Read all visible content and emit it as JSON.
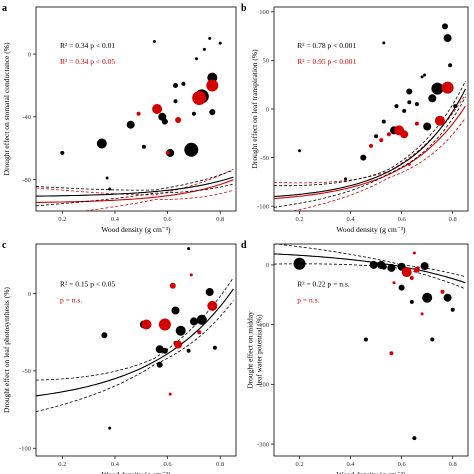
{
  "figure": {
    "colors": {
      "black": "#000000",
      "red": "#d40000",
      "frame": "#000000"
    }
  },
  "chart_data": [
    {
      "panel": "a",
      "type": "scatter",
      "xlabel": "Wood density (g cm⁻³)",
      "ylabel": "Drought effect on stomatal conductance (%)",
      "xlim": [
        0.1,
        0.86
      ],
      "ylim": [
        -100,
        30
      ],
      "xticks": [
        0.2,
        0.4,
        0.6,
        0.8
      ],
      "xtick_labels": [
        "0.2",
        "0.4",
        "0.6",
        "0.8"
      ],
      "yticks": [
        -80,
        -40,
        0
      ],
      "ytick_labels": [
        "-80",
        "-40",
        "0"
      ],
      "annotations": [
        {
          "text": "R² = 0.34 p <  0.01",
          "color": "black"
        },
        {
          "text": "R² = 0.34 p <  0.05",
          "color": "red"
        }
      ],
      "black_fit": {
        "a": -91,
        "b": 0.3,
        "k": 4.4,
        "ci": [
          0.28,
          0.08,
          0.55
        ]
      },
      "red_fit": {
        "a": -95,
        "b": 0.3,
        "k": 4.6,
        "ci": [
          0.42,
          0.08,
          0.55
        ]
      },
      "points": [
        {
          "x": 0.2,
          "y": -63,
          "s": 2,
          "g": "black"
        },
        {
          "x": 0.35,
          "y": -57,
          "s": 5,
          "g": "black"
        },
        {
          "x": 0.37,
          "y": -79,
          "s": 1.5,
          "g": "black"
        },
        {
          "x": 0.38,
          "y": -86,
          "s": 1.5,
          "g": "black"
        },
        {
          "x": 0.46,
          "y": -45,
          "s": 4,
          "g": "black"
        },
        {
          "x": 0.51,
          "y": -59,
          "s": 2,
          "g": "black"
        },
        {
          "x": 0.58,
          "y": -40,
          "s": 4,
          "g": "black"
        },
        {
          "x": 0.59,
          "y": -43,
          "s": 3,
          "g": "black"
        },
        {
          "x": 0.61,
          "y": -63,
          "s": 4,
          "g": "black"
        },
        {
          "x": 0.63,
          "y": -20,
          "s": 2.5,
          "g": "black"
        },
        {
          "x": 0.63,
          "y": -30,
          "s": 2,
          "g": "black"
        },
        {
          "x": 0.66,
          "y": -19,
          "s": 2,
          "g": "black"
        },
        {
          "x": 0.69,
          "y": -61,
          "s": 7,
          "g": "black"
        },
        {
          "x": 0.7,
          "y": -38,
          "s": 2,
          "g": "black"
        },
        {
          "x": 0.71,
          "y": -3,
          "s": 1.5,
          "g": "black"
        },
        {
          "x": 0.73,
          "y": -27,
          "s": 7,
          "g": "black"
        },
        {
          "x": 0.77,
          "y": -15,
          "s": 5,
          "g": "black"
        },
        {
          "x": 0.77,
          "y": -37,
          "s": 3,
          "g": "black"
        },
        {
          "x": 0.55,
          "y": 8,
          "s": 1.5,
          "g": "black"
        },
        {
          "x": 0.74,
          "y": 3,
          "s": 1.5,
          "g": "black"
        },
        {
          "x": 0.76,
          "y": 10,
          "s": 1.5,
          "g": "black"
        },
        {
          "x": 0.8,
          "y": 7,
          "s": 1.5,
          "g": "black"
        },
        {
          "x": 0.49,
          "y": -38,
          "s": 2,
          "g": "red"
        },
        {
          "x": 0.56,
          "y": -35,
          "s": 5,
          "g": "red"
        },
        {
          "x": 0.6,
          "y": -63,
          "s": 2,
          "g": "red"
        },
        {
          "x": 0.64,
          "y": -42,
          "s": 3,
          "g": "red"
        },
        {
          "x": 0.72,
          "y": -28,
          "s": 7,
          "g": "red"
        },
        {
          "x": 0.77,
          "y": -20,
          "s": 6,
          "g": "red"
        }
      ]
    },
    {
      "panel": "b",
      "type": "scatter",
      "xlabel": "Wood density (g cm⁻³)",
      "ylabel": "Drought effect on leaf transpiration (%)",
      "xlim": [
        0.1,
        0.86
      ],
      "ylim": [
        -105,
        105
      ],
      "xticks": [
        0.2,
        0.4,
        0.6,
        0.8
      ],
      "xtick_labels": [
        "0.2",
        "0.4",
        "0.6",
        "0.8"
      ],
      "yticks": [
        -100,
        -50,
        0,
        50,
        100
      ],
      "ytick_labels": [
        "-100",
        "-50",
        "0",
        "50",
        "100"
      ],
      "annotations": [
        {
          "text": "R² = 0.78 p <  0.001",
          "color": "black"
        },
        {
          "text": "R² = 0.95 p <  0.001",
          "color": "red"
        }
      ],
      "black_fit": {
        "a": -94,
        "b": 2.5,
        "k": 4.5,
        "ci": [
          0.3,
          0.1,
          0.55
        ]
      },
      "red_fit": {
        "a": -97,
        "b": 3.2,
        "k": 4.05,
        "ci": [
          0.45,
          0.1,
          0.55
        ]
      },
      "points": [
        {
          "x": 0.2,
          "y": -43,
          "s": 1.5,
          "g": "black"
        },
        {
          "x": 0.38,
          "y": -72,
          "s": 1.5,
          "g": "black"
        },
        {
          "x": 0.45,
          "y": -50,
          "s": 3,
          "g": "black"
        },
        {
          "x": 0.5,
          "y": -28,
          "s": 2,
          "g": "black"
        },
        {
          "x": 0.53,
          "y": -13,
          "s": 2,
          "g": "black"
        },
        {
          "x": 0.53,
          "y": 68,
          "s": 1.5,
          "g": "black"
        },
        {
          "x": 0.57,
          "y": -22,
          "s": 4,
          "g": "black"
        },
        {
          "x": 0.58,
          "y": 3,
          "s": 2,
          "g": "black"
        },
        {
          "x": 0.61,
          "y": -2,
          "s": 2,
          "g": "black"
        },
        {
          "x": 0.63,
          "y": 18,
          "s": 3,
          "g": "black"
        },
        {
          "x": 0.63,
          "y": 7,
          "s": 2,
          "g": "black"
        },
        {
          "x": 0.66,
          "y": 5,
          "s": 2,
          "g": "black"
        },
        {
          "x": 0.68,
          "y": 33,
          "s": 1.5,
          "g": "black"
        },
        {
          "x": 0.69,
          "y": 35,
          "s": 1.5,
          "g": "black"
        },
        {
          "x": 0.7,
          "y": -18,
          "s": 4,
          "g": "black"
        },
        {
          "x": 0.72,
          "y": 11,
          "s": 4,
          "g": "black"
        },
        {
          "x": 0.74,
          "y": 21,
          "s": 6,
          "g": "black"
        },
        {
          "x": 0.77,
          "y": 85,
          "s": 3,
          "g": "black"
        },
        {
          "x": 0.78,
          "y": 73,
          "s": 4,
          "g": "black"
        },
        {
          "x": 0.79,
          "y": 45,
          "s": 2,
          "g": "black"
        },
        {
          "x": 0.81,
          "y": 3,
          "s": 2,
          "g": "black"
        },
        {
          "x": 0.48,
          "y": -38,
          "s": 2,
          "g": "red"
        },
        {
          "x": 0.52,
          "y": -32,
          "s": 2,
          "g": "red"
        },
        {
          "x": 0.55,
          "y": -26,
          "s": 2,
          "g": "red"
        },
        {
          "x": 0.59,
          "y": -22,
          "s": 5,
          "g": "red"
        },
        {
          "x": 0.61,
          "y": -26,
          "s": 4,
          "g": "red"
        },
        {
          "x": 0.63,
          "y": -57,
          "s": 1.5,
          "g": "red"
        },
        {
          "x": 0.66,
          "y": -15,
          "s": 2,
          "g": "red"
        },
        {
          "x": 0.75,
          "y": -12,
          "s": 5,
          "g": "red"
        },
        {
          "x": 0.78,
          "y": 22,
          "s": 6,
          "g": "red"
        }
      ]
    },
    {
      "panel": "c",
      "type": "scatter",
      "xlabel": "Wood density (g cm⁻³)",
      "ylabel": "Drought effect on leaf photosynthesis (%)",
      "xlim": [
        0.1,
        0.86
      ],
      "ylim": [
        -105,
        32
      ],
      "xticks": [
        0.2,
        0.4,
        0.6,
        0.8
      ],
      "xtick_labels": [
        "0.2",
        "0.4",
        "0.6",
        "0.8"
      ],
      "yticks": [
        -100,
        -50,
        0
      ],
      "ytick_labels": [
        "-100",
        "-50",
        "0"
      ],
      "annotations": [
        {
          "text": "R² = 0.15 p <  0.05",
          "color": "black"
        },
        {
          "text": "p =  n.s.",
          "color": "red"
        }
      ],
      "black_fit": {
        "a": -73,
        "b": 5,
        "k": 3.2,
        "ci": [
          0.42,
          0.1,
          0.55
        ]
      },
      "points": [
        {
          "x": 0.36,
          "y": -27,
          "s": 3,
          "g": "black"
        },
        {
          "x": 0.38,
          "y": -87,
          "s": 1.5,
          "g": "black"
        },
        {
          "x": 0.51,
          "y": -20,
          "s": 4,
          "g": "black"
        },
        {
          "x": 0.57,
          "y": -36,
          "s": 4,
          "g": "black"
        },
        {
          "x": 0.57,
          "y": -46,
          "s": 3,
          "g": "black"
        },
        {
          "x": 0.59,
          "y": -37,
          "s": 3,
          "g": "black"
        },
        {
          "x": 0.63,
          "y": -32,
          "s": 2,
          "g": "black"
        },
        {
          "x": 0.63,
          "y": -11,
          "s": 4,
          "g": "black"
        },
        {
          "x": 0.65,
          "y": -24,
          "s": 5,
          "g": "black"
        },
        {
          "x": 0.68,
          "y": -37,
          "s": 2,
          "g": "black"
        },
        {
          "x": 0.68,
          "y": 29,
          "s": 1.5,
          "g": "black"
        },
        {
          "x": 0.7,
          "y": -18,
          "s": 4,
          "g": "black"
        },
        {
          "x": 0.73,
          "y": -17,
          "s": 5,
          "g": "black"
        },
        {
          "x": 0.76,
          "y": 1,
          "s": 4,
          "g": "black"
        },
        {
          "x": 0.78,
          "y": -35,
          "s": 2,
          "g": "black"
        },
        {
          "x": 0.52,
          "y": -20,
          "s": 5,
          "g": "red"
        },
        {
          "x": 0.59,
          "y": -20,
          "s": 6,
          "g": "red"
        },
        {
          "x": 0.61,
          "y": -65,
          "s": 1.5,
          "g": "red"
        },
        {
          "x": 0.62,
          "y": 5,
          "s": 3,
          "g": "red"
        },
        {
          "x": 0.64,
          "y": -33,
          "s": 4,
          "g": "red"
        },
        {
          "x": 0.69,
          "y": 12,
          "s": 1.5,
          "g": "red"
        },
        {
          "x": 0.72,
          "y": -25,
          "s": 2,
          "g": "red"
        },
        {
          "x": 0.77,
          "y": -8,
          "s": 5,
          "g": "red"
        }
      ]
    },
    {
      "panel": "d",
      "type": "scatter",
      "xlabel": "Wood density (g cm⁻³)",
      "ylabel": "Drought effect on midday leaf water potential (%)",
      "xlim": [
        0.1,
        0.86
      ],
      "ylim": [
        -320,
        35
      ],
      "xticks": [
        0.2,
        0.4,
        0.6,
        0.8
      ],
      "xtick_labels": [
        "0.2",
        "0.4",
        "0.6",
        "0.8"
      ],
      "yticks": [
        -300,
        -200,
        -100,
        0
      ],
      "ytick_labels": [
        "-300",
        "-200",
        "-100",
        "0"
      ],
      "annotations": [
        {
          "text": "R² = 0.22 p =  n.s.",
          "color": "black"
        },
        {
          "text": "p =  n.s.",
          "color": "red"
        }
      ],
      "black_fit": {
        "a": 26.5,
        "b": -6.2,
        "k": 2.6,
        "ci": [
          0.25,
          0.1,
          0.6
        ]
      },
      "points": [
        {
          "x": 0.2,
          "y": 2,
          "s": 6,
          "g": "black"
        },
        {
          "x": 0.46,
          "y": -125,
          "s": 2,
          "g": "black"
        },
        {
          "x": 0.49,
          "y": 0,
          "s": 4,
          "g": "black"
        },
        {
          "x": 0.52,
          "y": 0,
          "s": 4,
          "g": "black"
        },
        {
          "x": 0.53,
          "y": -3,
          "s": 3,
          "g": "black"
        },
        {
          "x": 0.56,
          "y": -5,
          "s": 4,
          "g": "black"
        },
        {
          "x": 0.6,
          "y": -3,
          "s": 4,
          "g": "black"
        },
        {
          "x": 0.6,
          "y": -38,
          "s": 3,
          "g": "black"
        },
        {
          "x": 0.64,
          "y": -62,
          "s": 2,
          "g": "black"
        },
        {
          "x": 0.65,
          "y": -290,
          "s": 2,
          "g": "black"
        },
        {
          "x": 0.69,
          "y": -2,
          "s": 4,
          "g": "black"
        },
        {
          "x": 0.7,
          "y": -55,
          "s": 5,
          "g": "black"
        },
        {
          "x": 0.72,
          "y": -125,
          "s": 2,
          "g": "black"
        },
        {
          "x": 0.78,
          "y": -55,
          "s": 4,
          "g": "black"
        },
        {
          "x": 0.8,
          "y": -75,
          "s": 2,
          "g": "black"
        },
        {
          "x": 0.56,
          "y": -148,
          "s": 2,
          "g": "red"
        },
        {
          "x": 0.57,
          "y": -30,
          "s": 1.5,
          "g": "red"
        },
        {
          "x": 0.62,
          "y": -12,
          "s": 5,
          "g": "red"
        },
        {
          "x": 0.64,
          "y": -22,
          "s": 2,
          "g": "red"
        },
        {
          "x": 0.65,
          "y": 20,
          "s": 1.5,
          "g": "red"
        },
        {
          "x": 0.66,
          "y": -8,
          "s": 3,
          "g": "red"
        },
        {
          "x": 0.68,
          "y": -82,
          "s": 1.5,
          "g": "red"
        },
        {
          "x": 0.76,
          "y": -45,
          "s": 2,
          "g": "red"
        }
      ]
    }
  ]
}
